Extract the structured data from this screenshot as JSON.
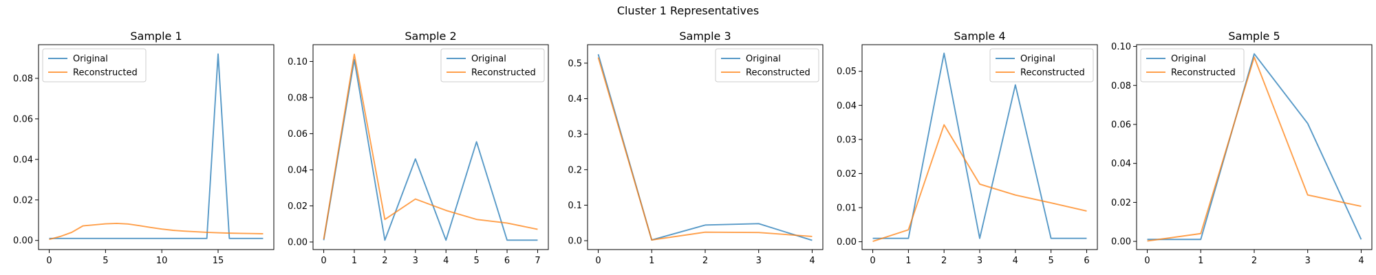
{
  "suptitle": "Cluster 1 Representatives",
  "colors": {
    "original": "#1f77b4",
    "reconstructed": "#ff7f0e"
  },
  "chart_data": [
    {
      "type": "line",
      "title": "Sample 1",
      "xlabel": "",
      "ylabel": "",
      "xlim": [
        -0.95,
        19.95
      ],
      "ylim": [
        -0.0045,
        0.0966
      ],
      "xticks": [
        0,
        5,
        10,
        15
      ],
      "xtick_labels": [
        "0",
        "5",
        "10",
        "15"
      ],
      "yticks": [
        0,
        0.02,
        0.04,
        0.06,
        0.08
      ],
      "ytick_labels": [
        "0.00",
        "0.02",
        "0.04",
        "0.06",
        "0.08"
      ],
      "legend_loc": "top-left",
      "x": [
        0,
        1,
        2,
        3,
        4,
        5,
        6,
        7,
        8,
        9,
        10,
        11,
        12,
        13,
        14,
        15,
        16,
        17,
        18,
        19
      ],
      "series": [
        {
          "name": "Original",
          "values": [
            0.001,
            0.001,
            0.001,
            0.001,
            0.001,
            0.001,
            0.001,
            0.001,
            0.001,
            0.001,
            0.001,
            0.001,
            0.001,
            0.001,
            0.001,
            0.092,
            0.001,
            0.001,
            0.001,
            0.001
          ]
        },
        {
          "name": "Reconstructed",
          "values": [
            0.0005,
            0.002,
            0.004,
            0.0072,
            0.0077,
            0.0082,
            0.0084,
            0.0081,
            0.0073,
            0.0064,
            0.0056,
            0.005,
            0.0046,
            0.0043,
            0.004,
            0.0038,
            0.0036,
            0.0035,
            0.0034,
            0.0033
          ]
        }
      ]
    },
    {
      "type": "line",
      "title": "Sample 2",
      "xlabel": "",
      "ylabel": "",
      "xlim": [
        -0.35,
        7.35
      ],
      "ylim": [
        -0.0042,
        0.1093
      ],
      "xticks": [
        0,
        1,
        2,
        3,
        4,
        5,
        6,
        7
      ],
      "xtick_labels": [
        "0",
        "1",
        "2",
        "3",
        "4",
        "5",
        "6",
        "7"
      ],
      "yticks": [
        0,
        0.02,
        0.04,
        0.06,
        0.08,
        0.1
      ],
      "ytick_labels": [
        "0.00",
        "0.02",
        "0.04",
        "0.06",
        "0.08",
        "0.10"
      ],
      "legend_loc": "top-right",
      "x": [
        0,
        1,
        2,
        3,
        4,
        5,
        6,
        7
      ],
      "series": [
        {
          "name": "Original",
          "values": [
            0.001,
            0.101,
            0.001,
            0.046,
            0.001,
            0.0555,
            0.001,
            0.001
          ]
        },
        {
          "name": "Reconstructed",
          "values": [
            0.0015,
            0.104,
            0.0125,
            0.0238,
            0.0175,
            0.0125,
            0.0105,
            0.007
          ]
        }
      ]
    },
    {
      "type": "line",
      "title": "Sample 3",
      "xlabel": "",
      "ylabel": "",
      "xlim": [
        -0.2,
        4.2
      ],
      "ylim": [
        -0.025,
        0.552
      ],
      "xticks": [
        0,
        1,
        2,
        3,
        4
      ],
      "xtick_labels": [
        "0",
        "1",
        "2",
        "3",
        "4"
      ],
      "yticks": [
        0,
        0.1,
        0.2,
        0.3,
        0.4,
        0.5
      ],
      "ytick_labels": [
        "0.0",
        "0.1",
        "0.2",
        "0.3",
        "0.4",
        "0.5"
      ],
      "legend_loc": "top-right",
      "x": [
        0,
        1,
        2,
        3,
        4
      ],
      "series": [
        {
          "name": "Original",
          "values": [
            0.525,
            0.002,
            0.044,
            0.048,
            0.001
          ]
        },
        {
          "name": "Reconstructed",
          "values": [
            0.516,
            0.002,
            0.024,
            0.023,
            0.012
          ]
        }
      ]
    },
    {
      "type": "line",
      "title": "Sample 4",
      "xlabel": "",
      "ylabel": "",
      "xlim": [
        -0.3,
        6.3
      ],
      "ylim": [
        -0.0023,
        0.0578
      ],
      "xticks": [
        0,
        1,
        2,
        3,
        4,
        5,
        6
      ],
      "xtick_labels": [
        "0",
        "1",
        "2",
        "3",
        "4",
        "5",
        "6"
      ],
      "yticks": [
        0,
        0.01,
        0.02,
        0.03,
        0.04,
        0.05
      ],
      "ytick_labels": [
        "0.00",
        "0.01",
        "0.02",
        "0.03",
        "0.04",
        "0.05"
      ],
      "legend_loc": "top-right",
      "x": [
        0,
        1,
        2,
        3,
        4,
        5,
        6
      ],
      "series": [
        {
          "name": "Original",
          "values": [
            0.001,
            0.001,
            0.0553,
            0.001,
            0.046,
            0.001,
            0.001
          ]
        },
        {
          "name": "Reconstructed",
          "values": [
            0.0001,
            0.0035,
            0.0343,
            0.0169,
            0.0137,
            0.0114,
            0.009
          ]
        }
      ]
    },
    {
      "type": "line",
      "title": "Sample 5",
      "xlabel": "",
      "ylabel": "",
      "xlim": [
        -0.2,
        4.2
      ],
      "ylim": [
        -0.0042,
        0.1009
      ],
      "xticks": [
        0,
        1,
        2,
        3,
        4
      ],
      "xtick_labels": [
        "0",
        "1",
        "2",
        "3",
        "4"
      ],
      "yticks": [
        0,
        0.02,
        0.04,
        0.06,
        0.08,
        0.1
      ],
      "ytick_labels": [
        "0.00",
        "0.02",
        "0.04",
        "0.06",
        "0.08",
        "0.10"
      ],
      "legend_loc": "top-left",
      "x": [
        0,
        1,
        2,
        3,
        4
      ],
      "series": [
        {
          "name": "Original",
          "values": [
            0.001,
            0.001,
            0.0962,
            0.0605,
            0.001
          ]
        },
        {
          "name": "Reconstructed",
          "values": [
            0.0002,
            0.004,
            0.0945,
            0.0238,
            0.018
          ]
        }
      ]
    }
  ]
}
